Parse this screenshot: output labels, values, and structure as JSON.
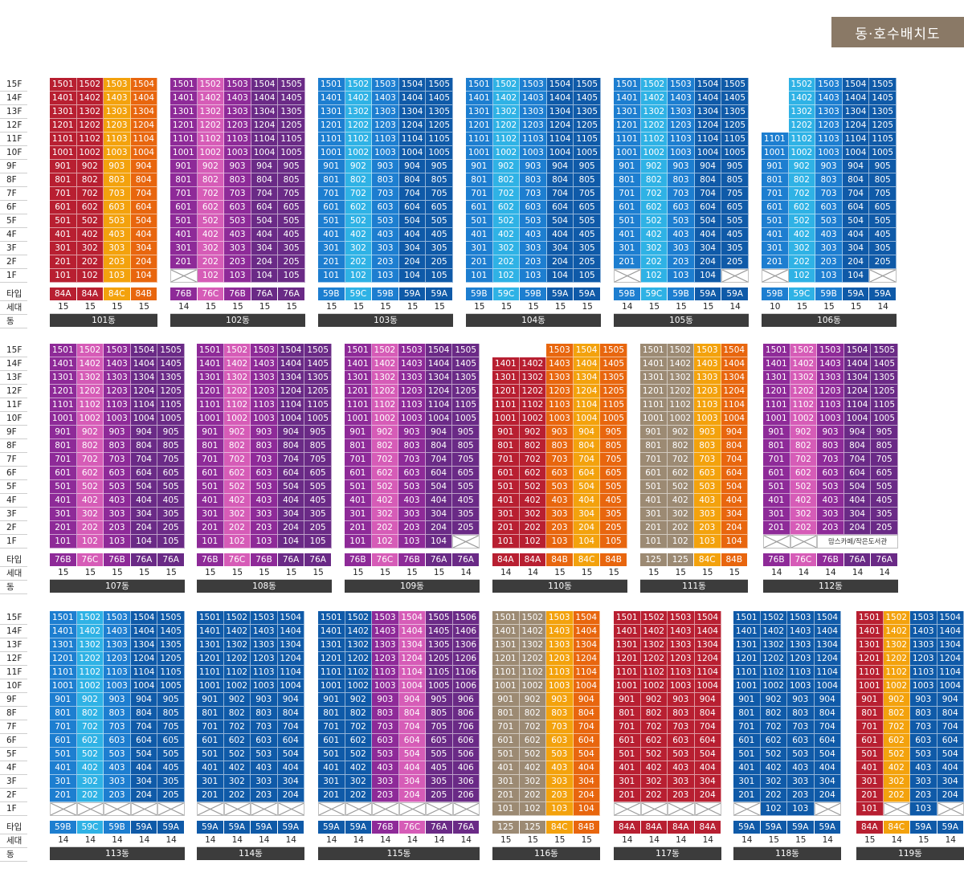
{
  "title": "동·호수배치도",
  "legend": {
    "type": "타입",
    "households": "세대",
    "building": "동"
  },
  "floors": [
    "15F",
    "14F",
    "13F",
    "12F",
    "11F",
    "10F",
    "9F",
    "8F",
    "7F",
    "6F",
    "5F",
    "4F",
    "3F",
    "2F",
    "1F"
  ],
  "colors": {
    "84A": "#b81f31",
    "84B": "#e8660e",
    "84C": "#f3a20d",
    "125": "#9c8a73",
    "76A": "#6a2a86",
    "76B": "#8e2a98",
    "76C": "#d65cb7",
    "59A": "#0f5aa8",
    "59B": "#1d7ed0",
    "59C": "#2fb2e5"
  },
  "buildings": [
    {
      "name": "101동",
      "types": [
        "84A",
        "84A",
        "84C",
        "84B"
      ],
      "households": [
        "15",
        "15",
        "15",
        "15"
      ],
      "blank": [],
      "sold": [],
      "noTop": []
    },
    {
      "name": "102동",
      "types": [
        "76B",
        "76C",
        "76B",
        "76A",
        "76A"
      ],
      "households": [
        "14",
        "15",
        "15",
        "15",
        "15"
      ],
      "blank": [],
      "sold": [
        0
      ],
      "noTop": []
    },
    {
      "name": "103동",
      "types": [
        "59B",
        "59C",
        "59B",
        "59A",
        "59A"
      ],
      "households": [
        "15",
        "15",
        "15",
        "15",
        "15"
      ],
      "blank": [],
      "sold": [],
      "noTop": []
    },
    {
      "name": "104동",
      "types": [
        "59B",
        "59C",
        "59B",
        "59A",
        "59A"
      ],
      "households": [
        "15",
        "15",
        "15",
        "15",
        "15"
      ],
      "blank": [],
      "sold": [],
      "noTop": []
    },
    {
      "name": "105동",
      "types": [
        "59B",
        "59C",
        "59B",
        "59A",
        "59A"
      ],
      "households": [
        "14",
        "15",
        "15",
        "15",
        "14"
      ],
      "blank": [],
      "sold": [
        0,
        4
      ],
      "noTop": []
    },
    {
      "name": "106동",
      "types": [
        "59B",
        "59C",
        "59B",
        "59A",
        "59A"
      ],
      "households": [
        "10",
        "15",
        "15",
        "15",
        "14"
      ],
      "blank": [],
      "sold": [
        0,
        4
      ],
      "noTop": [
        0,
        0,
        0,
        0,
        0
      ]
    },
    {
      "name": "107동",
      "types": [
        "76B",
        "76C",
        "76B",
        "76A",
        "76A"
      ],
      "households": [
        "15",
        "15",
        "15",
        "15",
        "15"
      ],
      "blank": [],
      "sold": [],
      "noTop": []
    },
    {
      "name": "108동",
      "types": [
        "76B",
        "76C",
        "76B",
        "76A",
        "76A"
      ],
      "households": [
        "15",
        "15",
        "15",
        "15",
        "15"
      ],
      "blank": [],
      "sold": [],
      "noTop": []
    },
    {
      "name": "109동",
      "types": [
        "76B",
        "76C",
        "76B",
        "76A",
        "76A"
      ],
      "households": [
        "15",
        "15",
        "15",
        "15",
        "14"
      ],
      "blank": [],
      "sold": [
        4
      ],
      "noTop": []
    },
    {
      "name": "110동",
      "types": [
        "84A",
        "84A",
        "84B",
        "84C",
        "84B"
      ],
      "households": [
        "14",
        "14",
        "15",
        "15",
        "15"
      ],
      "blank": [],
      "sold": [],
      "noTop": [
        0,
        1
      ]
    },
    {
      "name": "111동",
      "types": [
        "125",
        "125",
        "84C",
        "84B"
      ],
      "households": [
        "15",
        "15",
        "15",
        "15"
      ],
      "blank": [],
      "sold": [],
      "noTop": []
    },
    {
      "name": "112동",
      "types": [
        "76B",
        "76C",
        "76B",
        "76A",
        "76A"
      ],
      "households": [
        "14",
        "14",
        "14",
        "14",
        "14"
      ],
      "blank": [],
      "sold": [
        0,
        1
      ],
      "noTop": [],
      "library": "맘스카페/작은도서관"
    },
    {
      "name": "113동",
      "types": [
        "59B",
        "59C",
        "59B",
        "59A",
        "59A"
      ],
      "households": [
        "14",
        "14",
        "14",
        "14",
        "14"
      ],
      "blank": [],
      "sold": [
        0,
        1,
        2,
        3,
        4
      ],
      "noTop": []
    },
    {
      "name": "114동",
      "types": [
        "59A",
        "59A",
        "59A",
        "59A"
      ],
      "households": [
        "14",
        "14",
        "14",
        "14"
      ],
      "blank": [],
      "sold": [
        0,
        1,
        2,
        3
      ],
      "noTop": []
    },
    {
      "name": "115동",
      "types": [
        "59A",
        "59A",
        "76B",
        "76C",
        "76A",
        "76A"
      ],
      "households": [
        "14",
        "14",
        "14",
        "14",
        "14",
        "14"
      ],
      "blank": [],
      "sold": [
        0,
        1,
        2,
        3,
        4,
        5
      ],
      "noTop": []
    },
    {
      "name": "116동",
      "types": [
        "125",
        "125",
        "84C",
        "84B"
      ],
      "households": [
        "15",
        "15",
        "15",
        "15"
      ],
      "blank": [],
      "sold": [],
      "noTop": []
    },
    {
      "name": "117동",
      "types": [
        "84A",
        "84A",
        "84A",
        "84A"
      ],
      "households": [
        "14",
        "14",
        "14",
        "14"
      ],
      "blank": [],
      "sold": [
        0,
        1,
        2,
        3
      ],
      "noTop": []
    },
    {
      "name": "118동",
      "types": [
        "59A",
        "59A",
        "59A",
        "59A"
      ],
      "households": [
        "14",
        "15",
        "15",
        "14"
      ],
      "blank": [],
      "sold": [
        0,
        3
      ],
      "noTop": []
    },
    {
      "name": "119동",
      "types": [
        "84A",
        "84C",
        "59A",
        "59A"
      ],
      "households": [
        "15",
        "14",
        "15",
        "14"
      ],
      "blank": [],
      "sold": [
        1,
        3
      ],
      "noTop": []
    }
  ]
}
